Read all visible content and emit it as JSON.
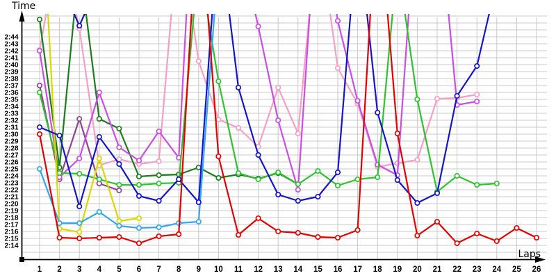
{
  "chart_data": {
    "type": "line",
    "title": "",
    "xlabel": "Laps",
    "ylabel": "Time",
    "x": [
      1,
      2,
      3,
      4,
      5,
      6,
      7,
      8,
      9,
      10,
      11,
      12,
      13,
      14,
      15,
      16,
      17,
      18,
      19,
      20,
      21,
      22,
      23,
      24,
      25,
      26
    ],
    "y_ticks": [
      "2:14",
      "2:15",
      "2:16",
      "2:17",
      "2:18",
      "2:19",
      "2:20",
      "2:21",
      "2:22",
      "2:23",
      "2:24",
      "2:25",
      "2:26",
      "2:27",
      "2:28",
      "2:29",
      "2:30",
      "2:31",
      "2:32",
      "2:33",
      "2:34",
      "2:35",
      "2:36",
      "2:37",
      "2:38",
      "2:39",
      "2:40",
      "2:41",
      "2:42",
      "2:43",
      "2:44"
    ],
    "y_tick_seconds_start": 134,
    "ylim_seconds": [
      132,
      168
    ],
    "grid": true,
    "legend": "none",
    "note_values_unit": "lap time in seconds; values above ~167s are off the top of the plot (pit laps)",
    "series": [
      {
        "name": "pink",
        "color": "#f59fc5",
        "values": [
          162.1,
          178,
          165.2,
          145.5,
          146.4,
          145.7,
          146.1,
          180,
          160.5,
          152.1,
          150.9,
          148.2,
          156.7,
          150.1,
          180,
          159.5,
          154.4,
          145.3,
          145.8,
          146.3,
          155.1,
          155.2,
          155.7,
          null,
          null,
          null
        ]
      },
      {
        "name": "green-dark",
        "color": "#1a7d1a",
        "values": [
          166.5,
          145.2,
          175,
          152.2,
          150.8,
          143.9,
          144.1,
          144.2,
          145.2,
          143.7,
          144.2,
          143.6,
          144.4,
          142.8,
          null,
          null,
          null,
          null,
          null,
          null,
          null,
          null,
          null,
          null,
          null,
          null
        ]
      },
      {
        "name": "purple",
        "color": "#8e4490",
        "values": [
          157,
          143.5,
          152.2,
          142.9,
          141.9,
          null,
          null,
          null,
          null,
          null,
          null,
          null,
          null,
          null,
          null,
          null,
          null,
          null,
          null,
          null,
          null,
          null,
          null,
          null,
          null,
          null
        ]
      },
      {
        "name": "magenta",
        "color": "#cc4ce6",
        "values": [
          162,
          143.8,
          146.5,
          156,
          148.1,
          146.2,
          150.4,
          146.6,
          200,
          200,
          178,
          165.5,
          152,
          142,
          185,
          166.3,
          154.8,
          145.6,
          144.1,
          185,
          185,
          154.2,
          154.7,
          null,
          null,
          null
        ]
      },
      {
        "name": "green-bright",
        "color": "#2ec22e",
        "values": [
          156,
          144.4,
          144.3,
          143.5,
          142.7,
          142.7,
          142.9,
          143,
          175,
          157.6,
          144.4,
          143.5,
          144.5,
          142.8,
          144.7,
          142.6,
          143.5,
          143.8,
          175,
          155,
          141.7,
          144,
          142.7,
          142.9,
          null,
          null
        ]
      },
      {
        "name": "yellow",
        "color": "#d9d900",
        "values": [
          190,
          136.4,
          135.9,
          146.5,
          137.5,
          137.9,
          null,
          null,
          null,
          null,
          null,
          null,
          null,
          null,
          null,
          null,
          null,
          null,
          null,
          null,
          null,
          null,
          null,
          null,
          null,
          null
        ]
      },
      {
        "name": "cyan",
        "color": "#2ea8f0",
        "values": [
          145,
          137.2,
          137.2,
          138.8,
          136.8,
          136.5,
          136.6,
          137.2,
          137.4,
          175,
          null,
          null,
          null,
          null,
          null,
          null,
          null,
          null,
          null,
          null,
          null,
          null,
          null,
          null,
          null,
          null
        ]
      },
      {
        "name": "blue",
        "color": "#1414cc",
        "values": [
          151,
          149.8,
          139.6,
          149.6,
          145.7,
          141.1,
          140.4,
          143.5,
          140.2,
          180,
          156.7,
          147,
          141.3,
          140.4,
          141,
          144.5,
          180,
          153.1,
          143.4,
          140.1,
          141.5,
          155.5,
          159.8,
          172,
          null,
          null
        ]
      },
      {
        "name": "blue-2",
        "color": "#1414cc",
        "values": [
          null,
          172,
          165.6,
          172,
          null,
          null,
          null,
          null,
          null,
          null,
          null,
          null,
          null,
          null,
          null,
          null,
          null,
          null,
          null,
          null,
          null,
          null,
          null,
          null,
          null,
          null
        ]
      },
      {
        "name": "red",
        "color": "#e60000",
        "values": [
          150,
          135.1,
          135,
          135.1,
          135.2,
          134.3,
          135.3,
          135.6,
          185,
          146.8,
          135.5,
          137.9,
          136,
          135.8,
          135.2,
          135.1,
          136.2,
          185,
          150.1,
          135.4,
          137.4,
          134.3,
          135.7,
          134.6,
          136.5,
          135.1
        ]
      }
    ]
  }
}
